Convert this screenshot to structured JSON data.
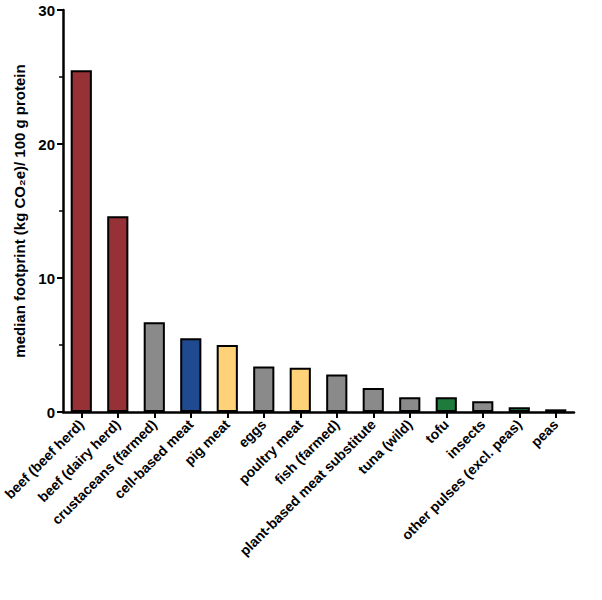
{
  "chart_data": {
    "type": "bar",
    "y_label": "median footprint (kg CO₂e)/ 100 g protein",
    "categories": [
      "beef (beef herd)",
      "beef (dairy herd)",
      "crustaceans (farmed)",
      "cell-based meat",
      "pig meat",
      "eggs",
      "poultry meat",
      "fish (farmed)",
      "plant-based meat substitute",
      "tuna (wild)",
      "tofu",
      "insects",
      "other pulses (excl. peas)",
      "peas"
    ],
    "values": [
      25.5,
      14.6,
      6.7,
      5.5,
      5.0,
      3.4,
      3.3,
      2.8,
      1.8,
      1.1,
      1.1,
      0.8,
      0.35,
      0.2
    ],
    "colors": [
      "#963136",
      "#963136",
      "#8a8a8a",
      "#1f4a8f",
      "#ffd27a",
      "#8a8a8a",
      "#ffd27a",
      "#8a8a8a",
      "#8a8a8a",
      "#8a8a8a",
      "#1e7b3c",
      "#8a8a8a",
      "#1e7b3c",
      "#1e7b3c"
    ],
    "ylim": [
      0,
      30
    ],
    "yticks": [
      0,
      10,
      20,
      30
    ],
    "grid": false,
    "data_labels": false
  }
}
